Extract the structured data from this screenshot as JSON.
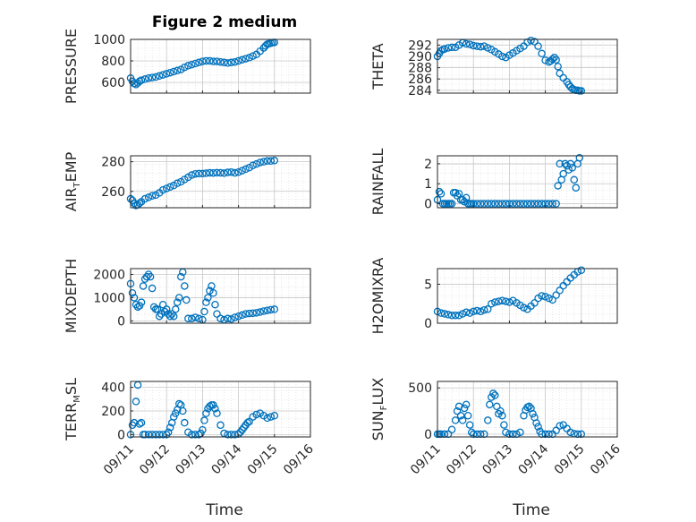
{
  "figure": {
    "title": "Figure 2 medium",
    "xlabel": "Time",
    "xticks": [
      "09/11",
      "09/12",
      "09/13",
      "09/14",
      "09/15",
      "09/16"
    ]
  },
  "colors": {
    "marker": "#0072BD",
    "axis": "#262626",
    "grid": "#d9d9d9"
  },
  "chart_data": [
    {
      "type": "scatter",
      "id": "pressure",
      "ylabel": "PRESSURE",
      "ylim": [
        500,
        1000
      ],
      "yticks": [
        600,
        800,
        1000
      ],
      "xlim": [
        0,
        5
      ],
      "x": [
        0,
        0.05,
        0.1,
        0.15,
        0.2,
        0.25,
        0.3,
        0.4,
        0.5,
        0.6,
        0.7,
        0.8,
        0.9,
        1.0,
        1.1,
        1.2,
        1.3,
        1.4,
        1.5,
        1.6,
        1.7,
        1.8,
        1.9,
        2.0,
        2.1,
        2.2,
        2.3,
        2.4,
        2.5,
        2.6,
        2.7,
        2.8,
        2.9,
        3.0,
        3.1,
        3.2,
        3.3,
        3.4,
        3.5,
        3.6,
        3.7,
        3.75,
        3.8,
        3.85,
        3.9,
        3.95,
        4.0
      ],
      "y": [
        640,
        610,
        590,
        580,
        595,
        610,
        620,
        630,
        640,
        645,
        650,
        660,
        670,
        680,
        690,
        700,
        710,
        720,
        740,
        755,
        765,
        775,
        785,
        795,
        800,
        800,
        795,
        795,
        790,
        785,
        780,
        785,
        790,
        800,
        810,
        820,
        830,
        845,
        860,
        890,
        920,
        940,
        955,
        960,
        965,
        970,
        972
      ]
    },
    {
      "type": "scatter",
      "id": "theta",
      "ylabel": "THETA",
      "ylim": [
        283.5,
        293
      ],
      "yticks": [
        284,
        286,
        288,
        290,
        292
      ],
      "xlim": [
        0,
        5
      ],
      "x": [
        0,
        0.05,
        0.1,
        0.15,
        0.2,
        0.3,
        0.4,
        0.5,
        0.6,
        0.7,
        0.8,
        0.9,
        1.0,
        1.1,
        1.2,
        1.3,
        1.4,
        1.5,
        1.6,
        1.7,
        1.8,
        1.9,
        2.0,
        2.1,
        2.2,
        2.3,
        2.4,
        2.5,
        2.6,
        2.7,
        2.8,
        2.9,
        3.0,
        3.1,
        3.15,
        3.2,
        3.25,
        3.3,
        3.35,
        3.4,
        3.5,
        3.6,
        3.65,
        3.7,
        3.75,
        3.8,
        3.85,
        3.9,
        3.95,
        4.0
      ],
      "y": [
        290,
        290.5,
        291,
        291.2,
        291.3,
        291.5,
        291.6,
        291.6,
        292,
        292.4,
        292.2,
        292.1,
        291.9,
        291.8,
        291.7,
        291.8,
        291.5,
        291.2,
        290.8,
        290.4,
        290,
        289.8,
        290.2,
        290.6,
        291,
        291.4,
        291.8,
        292.5,
        292.8,
        292.6,
        291.8,
        290.5,
        289.3,
        289,
        289.2,
        289.5,
        289.8,
        289.4,
        288.2,
        287,
        286.2,
        285.5,
        285,
        284.6,
        284.3,
        284.1,
        284,
        284,
        283.9,
        283.9
      ]
    },
    {
      "type": "scatter",
      "id": "air_temp",
      "ylabel": "AIR",
      "ylabel_sub": "T",
      "ylabel_rest": "EMP",
      "ylim": [
        249,
        284
      ],
      "yticks": [
        260,
        280
      ],
      "xlim": [
        0,
        5
      ],
      "x": [
        0,
        0.05,
        0.1,
        0.15,
        0.2,
        0.25,
        0.3,
        0.4,
        0.5,
        0.6,
        0.7,
        0.8,
        0.9,
        1.0,
        1.1,
        1.2,
        1.3,
        1.4,
        1.5,
        1.6,
        1.7,
        1.8,
        1.9,
        2.0,
        2.1,
        2.2,
        2.3,
        2.4,
        2.5,
        2.6,
        2.7,
        2.8,
        2.9,
        3.0,
        3.1,
        3.2,
        3.3,
        3.4,
        3.5,
        3.6,
        3.7,
        3.8,
        3.9,
        4.0
      ],
      "y": [
        255,
        254,
        252,
        250.5,
        251,
        252,
        253,
        255,
        256,
        257,
        257.5,
        259,
        261,
        262,
        263,
        264,
        265.5,
        266.5,
        268,
        269.5,
        271,
        271.8,
        272,
        272,
        272.2,
        272.5,
        272.4,
        272.6,
        272.5,
        272.3,
        272.8,
        273,
        272.5,
        273,
        274,
        275,
        276,
        277.5,
        278.5,
        279.5,
        280,
        280.5,
        280.5,
        280.8
      ]
    },
    {
      "type": "scatter",
      "id": "rainfall",
      "ylabel": "RAINFALL",
      "ylim": [
        -0.2,
        2.4
      ],
      "yticks": [
        0,
        1,
        2
      ],
      "xlim": [
        0,
        5
      ],
      "x": [
        0,
        0.05,
        0.1,
        0.15,
        0.2,
        0.25,
        0.3,
        0.35,
        0.4,
        0.45,
        0.5,
        0.55,
        0.6,
        0.65,
        0.7,
        0.75,
        0.8,
        0.85,
        0.9,
        0.95,
        1.0,
        1.1,
        1.2,
        1.3,
        1.4,
        1.5,
        1.6,
        1.7,
        1.8,
        1.9,
        2.0,
        2.1,
        2.2,
        2.3,
        2.4,
        2.5,
        2.6,
        2.7,
        2.8,
        2.9,
        3.0,
        3.1,
        3.2,
        3.3,
        3.35,
        3.4,
        3.45,
        3.5,
        3.55,
        3.6,
        3.65,
        3.7,
        3.75,
        3.8,
        3.85,
        3.9,
        3.95
      ],
      "y": [
        0.2,
        0.6,
        0.5,
        0,
        0,
        0,
        0,
        0,
        0,
        0.55,
        0.55,
        0.4,
        0.5,
        0.2,
        0.2,
        0.1,
        0.3,
        0,
        0,
        0,
        0,
        0,
        0,
        0,
        0,
        0,
        0,
        0,
        0,
        0,
        0,
        0,
        0,
        0,
        0,
        0,
        0,
        0,
        0,
        0,
        0,
        0,
        0,
        0,
        0.9,
        2.0,
        1.2,
        1.5,
        2.0,
        1.9,
        1.7,
        2.0,
        1.8,
        1.2,
        0.8,
        2.0,
        2.3
      ]
    },
    {
      "type": "scatter",
      "id": "mixdepth",
      "ylabel": "MIXDEPTH",
      "ylim": [
        -100,
        2250
      ],
      "yticks": [
        0,
        1000,
        2000
      ],
      "xlim": [
        0,
        5
      ],
      "x": [
        0,
        0.05,
        0.1,
        0.15,
        0.2,
        0.25,
        0.3,
        0.35,
        0.4,
        0.45,
        0.5,
        0.55,
        0.6,
        0.65,
        0.7,
        0.75,
        0.8,
        0.85,
        0.9,
        0.95,
        1.0,
        1.05,
        1.1,
        1.15,
        1.2,
        1.25,
        1.3,
        1.35,
        1.4,
        1.45,
        1.5,
        1.55,
        1.6,
        1.7,
        1.8,
        1.9,
        2.0,
        2.05,
        2.1,
        2.15,
        2.2,
        2.25,
        2.3,
        2.35,
        2.4,
        2.5,
        2.6,
        2.7,
        2.8,
        2.9,
        3.0,
        3.1,
        3.2,
        3.3,
        3.4,
        3.5,
        3.6,
        3.7,
        3.8,
        3.9,
        4.0
      ],
      "y": [
        1600,
        1200,
        1000,
        700,
        600,
        650,
        800,
        1500,
        1800,
        1900,
        2000,
        1900,
        1400,
        600,
        500,
        500,
        200,
        300,
        700,
        400,
        500,
        300,
        200,
        300,
        200,
        500,
        800,
        1000,
        1900,
        2100,
        1500,
        900,
        100,
        100,
        150,
        100,
        50,
        400,
        800,
        1000,
        1300,
        1500,
        1200,
        700,
        300,
        100,
        50,
        100,
        80,
        150,
        200,
        250,
        300,
        320,
        330,
        350,
        380,
        420,
        450,
        480,
        500
      ]
    },
    {
      "type": "scatter",
      "id": "h2omixra",
      "ylabel": "H2OMIXRA",
      "ylim": [
        0,
        7
      ],
      "yticks": [
        0,
        5
      ],
      "xlim": [
        0,
        5
      ],
      "x": [
        0,
        0.1,
        0.2,
        0.3,
        0.4,
        0.5,
        0.6,
        0.7,
        0.8,
        0.9,
        1.0,
        1.1,
        1.2,
        1.3,
        1.4,
        1.5,
        1.6,
        1.7,
        1.8,
        1.9,
        2.0,
        2.1,
        2.2,
        2.3,
        2.4,
        2.5,
        2.6,
        2.7,
        2.8,
        2.9,
        3.0,
        3.1,
        3.2,
        3.3,
        3.4,
        3.5,
        3.6,
        3.7,
        3.8,
        3.9,
        4.0
      ],
      "y": [
        1.5,
        1.3,
        1.2,
        1.1,
        1.0,
        1.0,
        1.0,
        1.2,
        1.4,
        1.3,
        1.5,
        1.6,
        1.5,
        1.7,
        1.8,
        2.5,
        2.7,
        2.8,
        2.9,
        2.8,
        2.7,
        2.9,
        2.6,
        2.3,
        2.0,
        1.8,
        2.2,
        2.6,
        3.2,
        3.5,
        3.4,
        3.2,
        3.0,
        3.6,
        4.2,
        4.8,
        5.3,
        5.8,
        6.2,
        6.6,
        6.8
      ]
    },
    {
      "type": "scatter",
      "id": "terr_msl",
      "ylabel": "TERR",
      "ylabel_sub": "M",
      "ylabel_rest": "SL",
      "ylim": [
        -20,
        450
      ],
      "yticks": [
        0,
        200,
        400
      ],
      "xlim": [
        0,
        5
      ],
      "x": [
        0,
        0.05,
        0.1,
        0.15,
        0.2,
        0.25,
        0.3,
        0.35,
        0.4,
        0.5,
        0.6,
        0.7,
        0.8,
        0.9,
        1.0,
        1.05,
        1.1,
        1.15,
        1.2,
        1.25,
        1.3,
        1.35,
        1.4,
        1.45,
        1.5,
        1.6,
        1.7,
        1.8,
        1.9,
        1.95,
        2.0,
        2.05,
        2.1,
        2.15,
        2.2,
        2.25,
        2.3,
        2.35,
        2.4,
        2.5,
        2.6,
        2.7,
        2.8,
        2.9,
        3.0,
        3.05,
        3.1,
        3.15,
        3.2,
        3.25,
        3.3,
        3.4,
        3.5,
        3.6,
        3.7,
        3.8,
        3.9,
        4.0
      ],
      "y": [
        0,
        80,
        100,
        280,
        420,
        90,
        100,
        0,
        0,
        0,
        0,
        0,
        0,
        0,
        0,
        20,
        60,
        100,
        150,
        180,
        210,
        260,
        250,
        200,
        100,
        20,
        0,
        0,
        0,
        10,
        40,
        120,
        180,
        220,
        240,
        250,
        250,
        220,
        180,
        80,
        10,
        0,
        0,
        0,
        5,
        20,
        40,
        60,
        80,
        100,
        110,
        150,
        170,
        180,
        160,
        140,
        150,
        160
      ]
    },
    {
      "type": "scatter",
      "id": "sun_flux",
      "ylabel": "SUN",
      "ylabel_sub": "F",
      "ylabel_rest": "LUX",
      "ylim": [
        -30,
        570
      ],
      "yticks": [
        0,
        500
      ],
      "xlim": [
        0,
        5
      ],
      "x": [
        0,
        0.05,
        0.1,
        0.2,
        0.3,
        0.4,
        0.5,
        0.55,
        0.6,
        0.65,
        0.7,
        0.75,
        0.8,
        0.85,
        0.9,
        0.95,
        1.0,
        1.1,
        1.2,
        1.3,
        1.4,
        1.45,
        1.5,
        1.55,
        1.6,
        1.65,
        1.7,
        1.75,
        1.8,
        1.85,
        1.9,
        2.0,
        2.1,
        2.2,
        2.3,
        2.4,
        2.45,
        2.5,
        2.55,
        2.6,
        2.65,
        2.7,
        2.75,
        2.8,
        2.85,
        2.9,
        3.0,
        3.1,
        3.2,
        3.3,
        3.4,
        3.5,
        3.6,
        3.7,
        3.8,
        3.9,
        4.0
      ],
      "y": [
        0,
        0,
        0,
        0,
        0,
        50,
        150,
        250,
        300,
        200,
        150,
        280,
        320,
        200,
        100,
        20,
        0,
        0,
        0,
        0,
        150,
        320,
        400,
        440,
        420,
        300,
        220,
        250,
        200,
        100,
        20,
        0,
        0,
        0,
        20,
        200,
        260,
        290,
        300,
        280,
        220,
        180,
        120,
        80,
        30,
        0,
        0,
        0,
        0,
        40,
        90,
        100,
        60,
        20,
        5,
        0,
        0
      ]
    }
  ]
}
